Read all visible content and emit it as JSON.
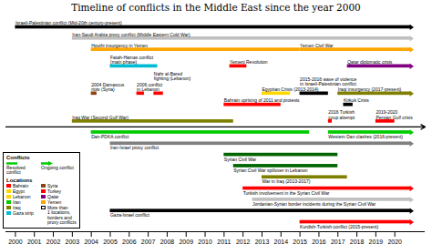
{
  "chart_data": {
    "type": "timeline",
    "title": "Timeline of conflicts in the Middle East since the year 2000",
    "xlim": [
      1999.5,
      2021.6
    ],
    "xticks": [
      2000,
      2001,
      2002,
      2003,
      2004,
      2005,
      2006,
      2007,
      2008,
      2009,
      2010,
      2011,
      2012,
      2013,
      2014,
      2015,
      2016,
      2017,
      2018,
      2019,
      2020
    ],
    "tick_labels": "x",
    "lanes_above": [
      [
        {
          "label": "Israeli-Palestinian conflict (Mid-20th century-present)",
          "start": 2000,
          "end": 2021,
          "color": "#000000",
          "ongoing": true
        }
      ],
      [
        {
          "label": "Iran-Saudi Arabia proxy conflict (Middle Eastern Cold War)",
          "start": 2003,
          "end": 2021,
          "color": "#c0c0c0",
          "ongoing": true
        }
      ],
      [
        {
          "label": "Houthi insurgency in Yemen",
          "start": 2004,
          "end": 2015,
          "color": "#ffa500",
          "ongoing": false
        },
        {
          "label": "Yemen Civil War",
          "start": 2015,
          "end": 2021,
          "color": "#ffa500",
          "ongoing": true
        }
      ],
      [
        {
          "label": "Fatah-Hamas conflict\n(main phase)",
          "start": 2005,
          "end": 2007.5,
          "color": "#00bcd4",
          "ongoing": false
        },
        {
          "label": "Yemeni Revolution",
          "start": 2011.3,
          "end": 2012.2,
          "color": "#ff0000",
          "ongoing": false
        },
        {
          "label": "Qatar diplomatic crisis",
          "start": 2017.5,
          "end": 2021,
          "color": "#800080",
          "ongoing": true
        }
      ],
      [
        {
          "label": "Nahr al-Bared\nfighting (Lebanon)",
          "start": 2007.3,
          "end": 2007.8,
          "color": "#ff0000",
          "ongoing": false
        },
        {
          "label": "2006 conflict\nin Lebanon",
          "start": 2006.4,
          "end": 2006.8,
          "color": "#ff0000",
          "ongoing": false
        },
        {
          "label": "2004 Damascus\nriots (Syria)",
          "start": 2004,
          "end": 2004.3,
          "color": "#8B4513",
          "ongoing": false
        },
        {
          "label": "Egyptian Crisis (2013-2014)",
          "start": 2013,
          "end": 2014.5,
          "color": "#ffd700",
          "ongoing": false
        },
        {
          "label": "2015-2016 wave of violence\nin Israeli-Palestinian conflict",
          "start": 2015,
          "end": 2016.5,
          "color": "#000000",
          "ongoing": false
        },
        {
          "label": "Iraqi insurgency (2017-present)",
          "start": 2017,
          "end": 2021,
          "color": "#808000",
          "ongoing": true
        }
      ],
      [
        {
          "label": "Bahrain uprising of 2011 and protests",
          "start": 2011,
          "end": 2014,
          "color": "#ff0000",
          "ongoing": false
        },
        {
          "label": "Kirkuk Crisis",
          "start": 2017.3,
          "end": 2017.8,
          "color": "#000000",
          "ongoing": false
        }
      ],
      [
        {
          "label": "Iraq War (Second Gulf War)",
          "start": 2003,
          "end": 2011.5,
          "color": "#808000",
          "ongoing": false
        },
        {
          "label": "2016 Turkish\ncoup attempt",
          "start": 2016.5,
          "end": 2016.7,
          "color": "#ff0000",
          "ongoing": false
        },
        {
          "label": "2019-2020\nPersian Gulf crisis",
          "start": 2019,
          "end": 2020,
          "color": "#ff0000",
          "ongoing": false
        }
      ]
    ],
    "lanes_below": [
      [
        {
          "label": "Dan-PDKA conflict",
          "start": 2004,
          "end": 2015.5,
          "color": "#00cc00",
          "ongoing": false
        },
        {
          "label": "Western Dan clashes (2016-present)",
          "start": 2016.5,
          "end": 2021,
          "color": "#00cc00",
          "ongoing": true
        }
      ],
      [
        {
          "label": "Iran-Israel proxy conflict",
          "start": 2005,
          "end": 2021,
          "color": "#808080",
          "ongoing": true
        }
      ],
      [
        {
          "label": "Syrian Civil War",
          "start": 2011,
          "end": 2017,
          "color": "#006400",
          "ongoing": false
        }
      ],
      [
        {
          "label": "Syrian Civil War spillover in Lebanon",
          "start": 2011.5,
          "end": 2017,
          "color": "#006400",
          "ongoing": false
        }
      ],
      [
        {
          "label": "War in Iraq (2013-2017)",
          "start": 2013,
          "end": 2017.5,
          "color": "#808000",
          "ongoing": false
        }
      ],
      [
        {
          "label": "Turkish involvement in the Syrian Civil War",
          "start": 2012,
          "end": 2021,
          "color": "#ff0000",
          "ongoing": true
        }
      ],
      [
        {
          "label": "Jordanian-Syrian border incidents during the Syrian Civil War",
          "start": 2012.5,
          "end": 2021,
          "color": "#c0c0c0",
          "ongoing": true
        }
      ],
      [
        {
          "label": "Gaza-Israel conflict",
          "start": 2005,
          "end": 2021,
          "color": "#000000",
          "ongoing": true
        }
      ],
      [
        {
          "label": "Kurdish-Turkish conflict (2015-present)",
          "start": 2015,
          "end": 2021,
          "color": "#ff0000",
          "ongoing": true
        }
      ]
    ],
    "conflict_legend": {
      "title": "Conflicts",
      "resolved": "Resolved\nconflict",
      "ongoing": "Ongoing conflict",
      "color": "#00cc00"
    },
    "location_legend": {
      "title": "Locations",
      "items": [
        {
          "name": "Bahrain",
          "color": "#ff0000"
        },
        {
          "name": "Egypt",
          "color": "#ffd700"
        },
        {
          "name": "Lebanon",
          "color": "#ffd700"
        },
        {
          "name": "Iran",
          "color": "#00cc00"
        },
        {
          "name": "Iraq",
          "color": "#808000"
        },
        {
          "name": "Gaza strip",
          "color": "#00bcd4"
        },
        {
          "name": "Syria",
          "color": "#8B4513"
        },
        {
          "name": "Turkey",
          "color": "#ff0000"
        },
        {
          "name": "Qatar",
          "color": "#800080"
        },
        {
          "name": "Yemen",
          "color": "#ffa500"
        }
      ],
      "note": "More than\n1 locations,\nborders and\nproxy conflicts",
      "note_color": "#ffffff"
    }
  }
}
